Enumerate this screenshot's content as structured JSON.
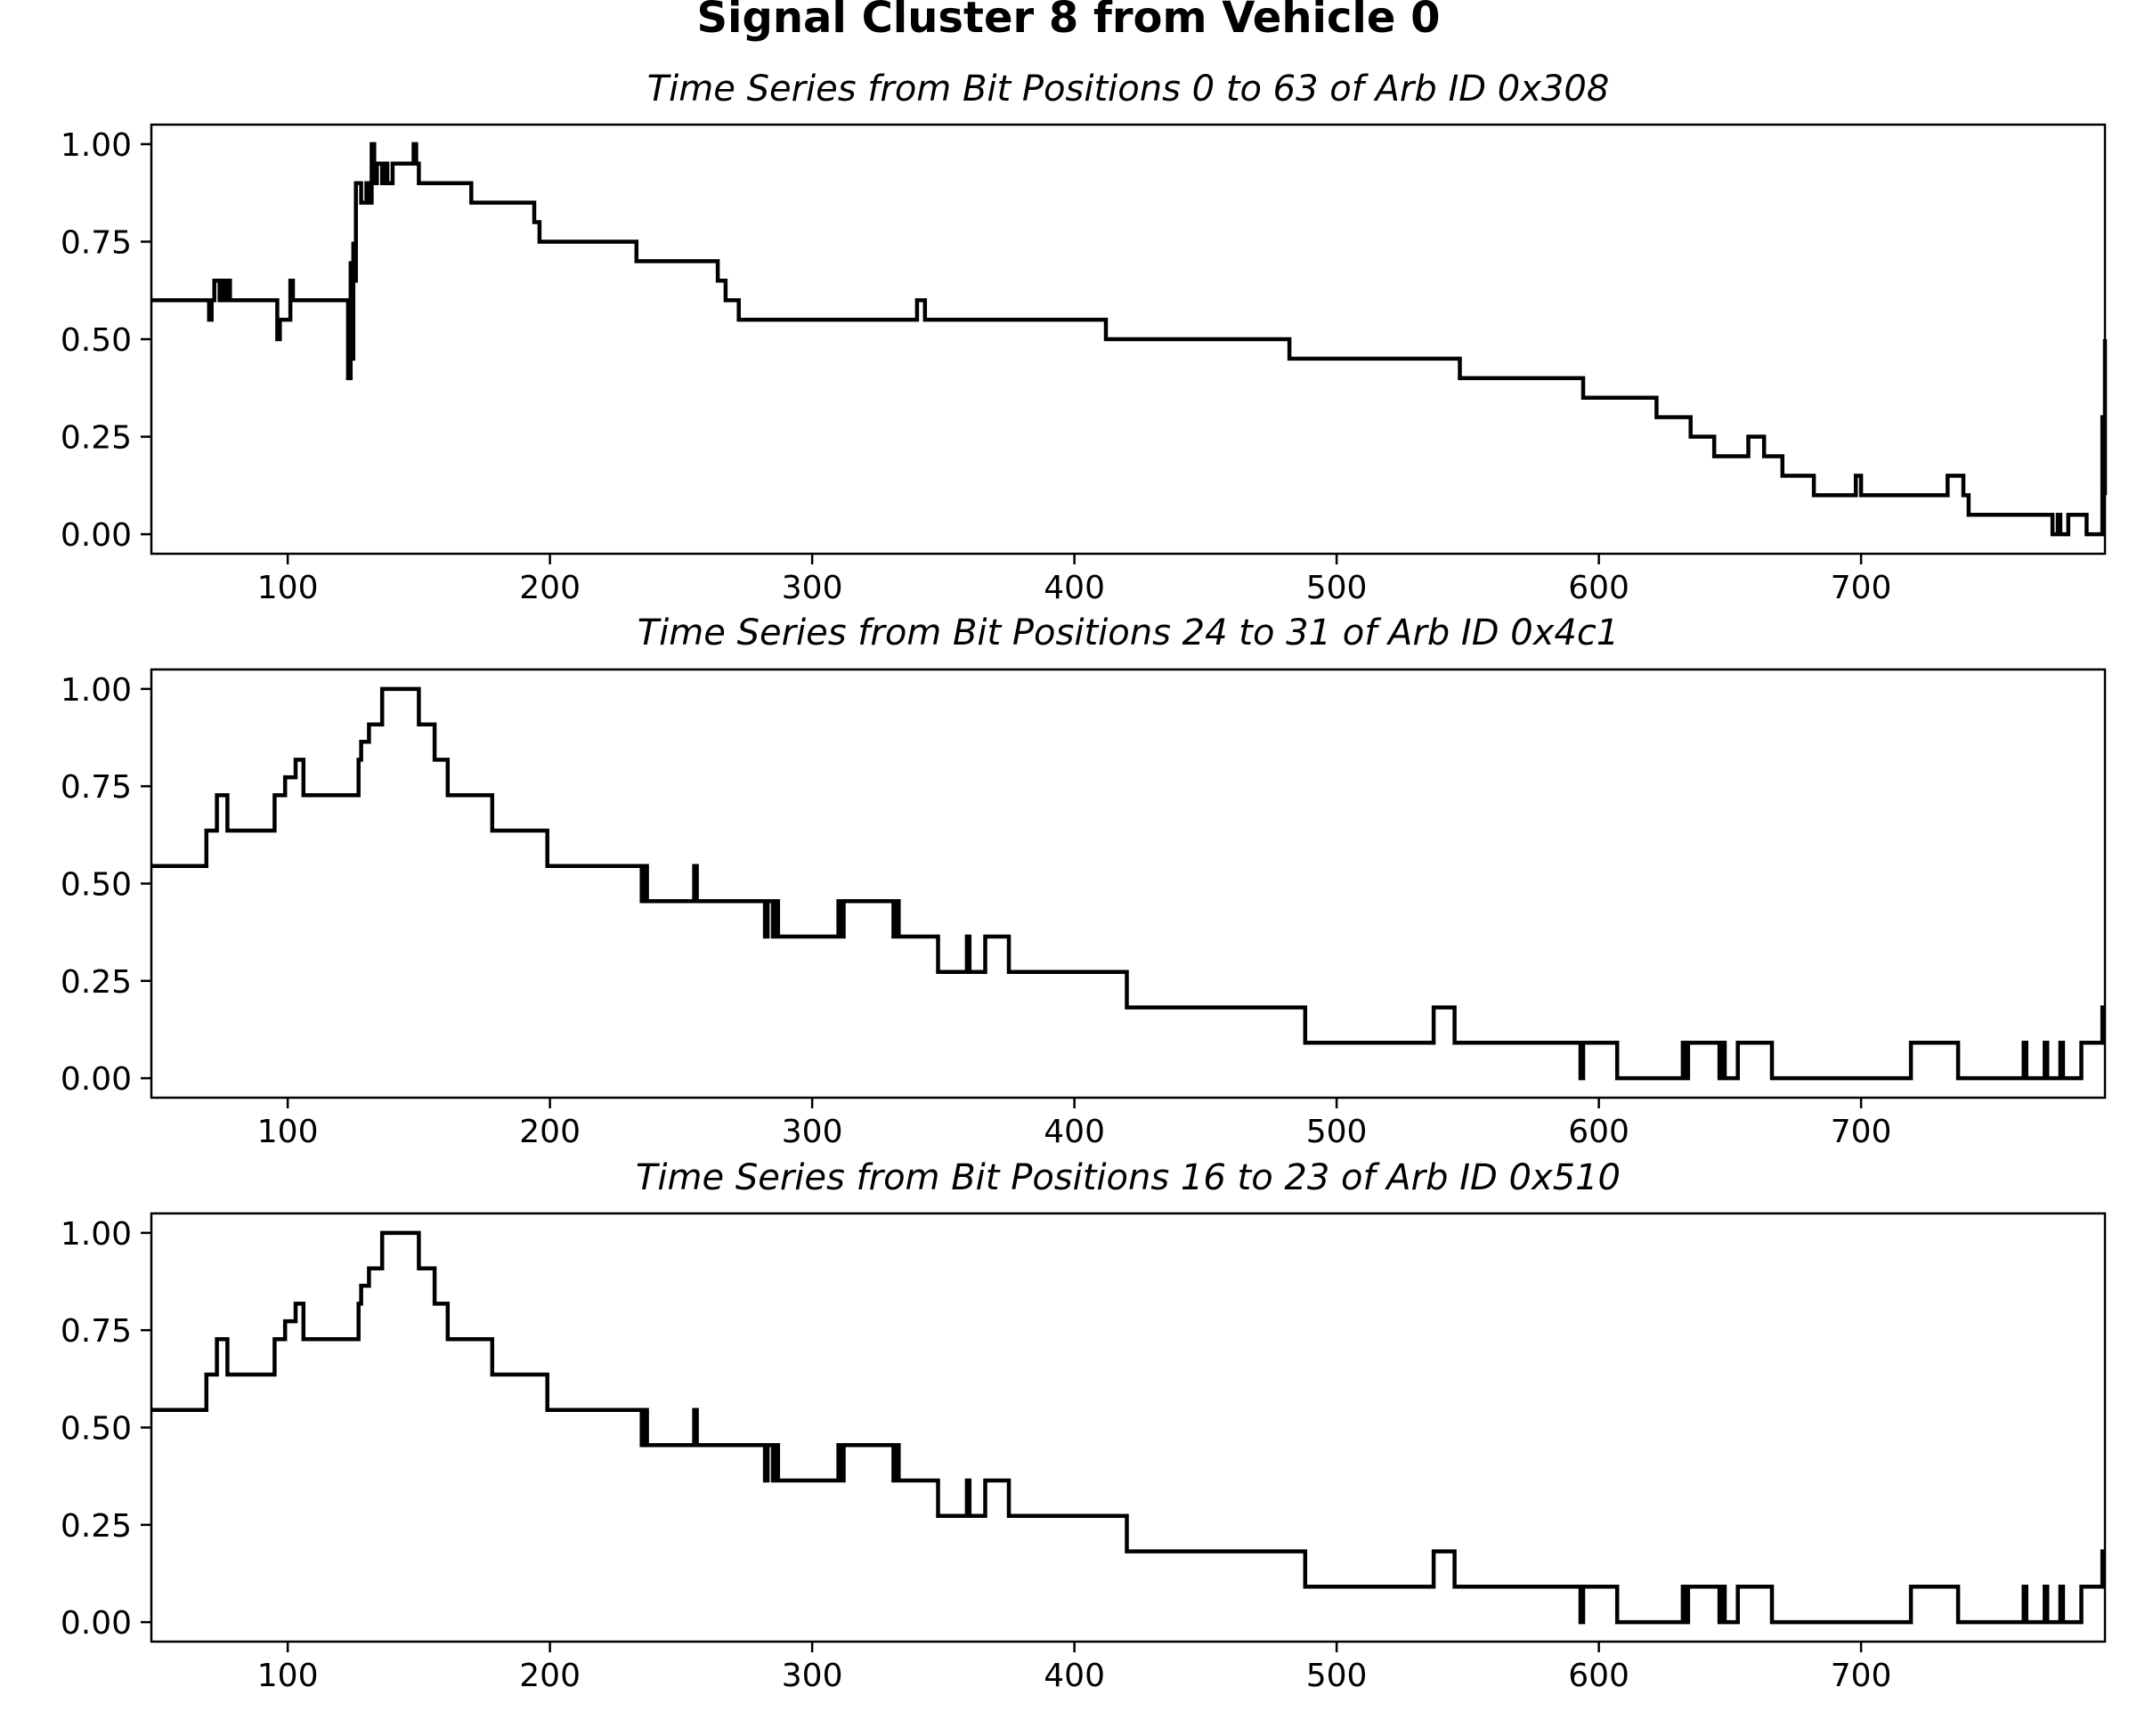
{
  "figure": {
    "title": "Signal Cluster 8 from Vehicle 0"
  },
  "colors": {
    "line": "#000000",
    "background": "#ffffff",
    "axes": "#000000"
  },
  "chart_data": [
    {
      "type": "line",
      "title": "Time Series from Bit Positions 0 to 63 of Arb ID 0x308",
      "xlabel": "",
      "ylabel": "",
      "xlim": [
        48,
        793
      ],
      "ylim": [
        -0.05,
        1.05
      ],
      "xticks": [
        100,
        200,
        300,
        400,
        500,
        600,
        700
      ],
      "yticks": [
        0,
        0.25,
        0.5,
        0.75,
        1.0
      ],
      "ytick_labels": [
        "0.00",
        "0.25",
        "0.50",
        "0.75",
        "1.00"
      ],
      "grid": false,
      "step": true,
      "x": [
        48,
        70,
        70,
        71,
        72,
        74,
        75,
        76,
        77,
        78,
        95,
        96,
        97,
        101,
        102,
        122,
        123,
        124,
        124,
        125,
        125,
        126,
        127,
        128,
        130,
        131,
        132,
        133,
        134,
        136,
        137,
        138,
        140,
        148,
        149,
        150,
        170,
        194,
        196,
        233,
        264,
        267,
        268,
        272,
        339,
        340,
        343,
        344,
        412,
        482,
        547,
        594,
        622,
        635,
        639,
        644,
        657,
        663,
        665,
        670,
        682,
        698,
        700,
        703,
        705,
        733,
        737,
        739,
        741,
        773,
        775,
        776,
        777,
        779,
        786,
        792,
        793,
        793
      ],
      "y": [
        0.6,
        0.6,
        0.55,
        0.6,
        0.65,
        0.6,
        0.65,
        0.6,
        0.65,
        0.6,
        0.6,
        0.5,
        0.55,
        0.65,
        0.6,
        0.6,
        0.4,
        0.7,
        0.45,
        0.75,
        0.65,
        0.9,
        0.9,
        0.85,
        0.9,
        0.85,
        1.0,
        0.9,
        0.95,
        0.9,
        0.95,
        0.9,
        0.95,
        1.0,
        0.95,
        0.9,
        0.85,
        0.8,
        0.75,
        0.7,
        0.65,
        0.6,
        0.6,
        0.55,
        0.55,
        0.6,
        0.55,
        0.55,
        0.5,
        0.45,
        0.4,
        0.35,
        0.3,
        0.25,
        0.25,
        0.2,
        0.25,
        0.2,
        0.2,
        0.15,
        0.1,
        0.15,
        0.1,
        0.1,
        0.1,
        0.15,
        0.15,
        0.1,
        0.05,
        0.0,
        0.05,
        0.0,
        0.0,
        0.05,
        0.0,
        0.3,
        0.1,
        0.5
      ]
    },
    {
      "type": "line",
      "title": "Time Series from Bit Positions 24 to 31 of Arb ID 0x4c1",
      "xlabel": "",
      "ylabel": "",
      "xlim": [
        48,
        793
      ],
      "ylim": [
        -0.05,
        1.05
      ],
      "xticks": [
        100,
        200,
        300,
        400,
        500,
        600,
        700
      ],
      "yticks": [
        0,
        0.25,
        0.5,
        0.75,
        1.0
      ],
      "ytick_labels": [
        "0.00",
        "0.25",
        "0.50",
        "0.75",
        "1.00"
      ],
      "grid": false,
      "step": true,
      "x": [
        48,
        69,
        71,
        73,
        77,
        95,
        96,
        99,
        103,
        106,
        127,
        128,
        131,
        136,
        150,
        152,
        156,
        161,
        178,
        199,
        235,
        236,
        237,
        238,
        255,
        256,
        257,
        282,
        283,
        285,
        286,
        287,
        309,
        310,
        311,
        312,
        331,
        332,
        333,
        334,
        348,
        359,
        360,
        361,
        366,
        367,
        375,
        420,
        488,
        537,
        545,
        593,
        594,
        607,
        618,
        632,
        633,
        634,
        646,
        647,
        648,
        653,
        656,
        666,
        719,
        737,
        762,
        763,
        764,
        770,
        771,
        776,
        777,
        784,
        791,
        792,
        793
      ],
      "y": [
        0.545,
        0.636,
        0.636,
        0.727,
        0.636,
        0.727,
        0.727,
        0.773,
        0.818,
        0.727,
        0.818,
        0.864,
        0.909,
        1.0,
        0.909,
        0.909,
        0.818,
        0.727,
        0.636,
        0.545,
        0.455,
        0.545,
        0.455,
        0.455,
        0.545,
        0.455,
        0.455,
        0.364,
        0.455,
        0.364,
        0.455,
        0.364,
        0.364,
        0.455,
        0.364,
        0.455,
        0.364,
        0.455,
        0.364,
        0.364,
        0.273,
        0.364,
        0.273,
        0.273,
        0.364,
        0.364,
        0.273,
        0.182,
        0.091,
        0.182,
        0.091,
        0.0,
        0.091,
        0.0,
        0.0,
        0.091,
        0.0,
        0.091,
        0.0,
        0.091,
        0.0,
        0.091,
        0.091,
        0.0,
        0.091,
        0.0,
        0.091,
        0.0,
        0.0,
        0.091,
        0.0,
        0.091,
        0.0,
        0.091,
        0.091,
        0.182,
        0.182
      ]
    },
    {
      "type": "line",
      "title": "Time Series from Bit Positions 16 to 23 of Arb ID 0x510",
      "xlabel": "",
      "ylabel": "",
      "xlim": [
        48,
        793
      ],
      "ylim": [
        -0.05,
        1.05
      ],
      "xticks": [
        100,
        200,
        300,
        400,
        500,
        600,
        700
      ],
      "yticks": [
        0,
        0.25,
        0.5,
        0.75,
        1.0
      ],
      "ytick_labels": [
        "0.00",
        "0.25",
        "0.50",
        "0.75",
        "1.00"
      ],
      "grid": false,
      "step": true,
      "x": [
        48,
        69,
        71,
        73,
        77,
        95,
        96,
        99,
        103,
        106,
        127,
        128,
        131,
        136,
        150,
        152,
        156,
        161,
        178,
        199,
        235,
        236,
        237,
        238,
        255,
        256,
        257,
        282,
        283,
        285,
        286,
        287,
        309,
        310,
        311,
        312,
        331,
        332,
        333,
        334,
        348,
        359,
        360,
        361,
        366,
        367,
        375,
        420,
        488,
        537,
        545,
        593,
        594,
        607,
        618,
        632,
        633,
        634,
        646,
        647,
        648,
        653,
        656,
        666,
        719,
        737,
        762,
        763,
        764,
        770,
        771,
        776,
        777,
        784,
        791,
        792,
        793
      ],
      "y": [
        0.545,
        0.636,
        0.636,
        0.727,
        0.636,
        0.727,
        0.727,
        0.773,
        0.818,
        0.727,
        0.818,
        0.864,
        0.909,
        1.0,
        0.909,
        0.909,
        0.818,
        0.727,
        0.636,
        0.545,
        0.455,
        0.545,
        0.455,
        0.455,
        0.545,
        0.455,
        0.455,
        0.364,
        0.455,
        0.364,
        0.455,
        0.364,
        0.364,
        0.455,
        0.364,
        0.455,
        0.364,
        0.455,
        0.364,
        0.364,
        0.273,
        0.364,
        0.273,
        0.273,
        0.364,
        0.364,
        0.273,
        0.182,
        0.091,
        0.182,
        0.091,
        0.0,
        0.091,
        0.0,
        0.0,
        0.091,
        0.0,
        0.091,
        0.0,
        0.091,
        0.0,
        0.091,
        0.091,
        0.0,
        0.091,
        0.0,
        0.091,
        0.0,
        0.0,
        0.091,
        0.0,
        0.091,
        0.0,
        0.091,
        0.091,
        0.182,
        0.182
      ]
    }
  ]
}
